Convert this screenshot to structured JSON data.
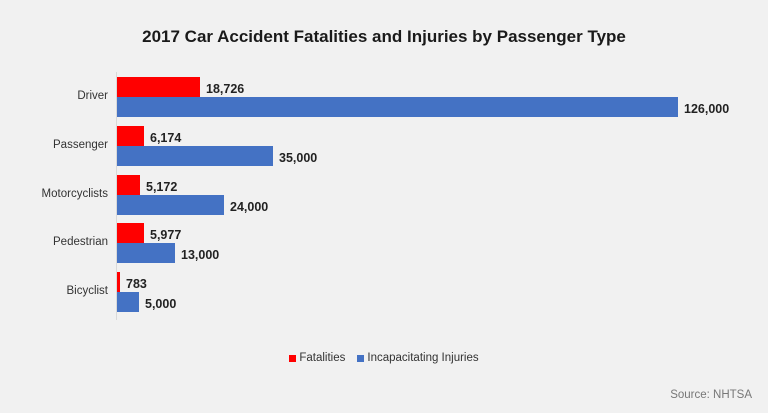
{
  "chart_data": {
    "type": "bar",
    "orientation": "horizontal",
    "title": "2017 Car Accident Fatalities and Injuries by Passenger Type",
    "categories": [
      "Driver",
      "Passenger",
      "Motorcyclists",
      "Pedestrian",
      "Bicyclist"
    ],
    "series": [
      {
        "name": "Fatalities",
        "color": "#ff0000",
        "values": [
          18726,
          6174,
          5172,
          5977,
          783
        ],
        "labels": [
          "18,726",
          "6,174",
          "5,172",
          "5,977",
          "783"
        ]
      },
      {
        "name": "Incapacitating Injuries",
        "color": "#4472c4",
        "values": [
          126000,
          35000,
          24000,
          13000,
          5000
        ],
        "labels": [
          "126,000",
          "35,000",
          "24,000",
          "13,000",
          "5,000"
        ]
      }
    ],
    "xlabel": "",
    "ylabel": "",
    "xlim": [
      0,
      126000
    ],
    "grid": false,
    "legend_position": "bottom",
    "source": "Source: NHTSA"
  },
  "legend": [
    "Fatalities",
    "Incapacitating Injuries"
  ],
  "source": "Source: NHTSA"
}
